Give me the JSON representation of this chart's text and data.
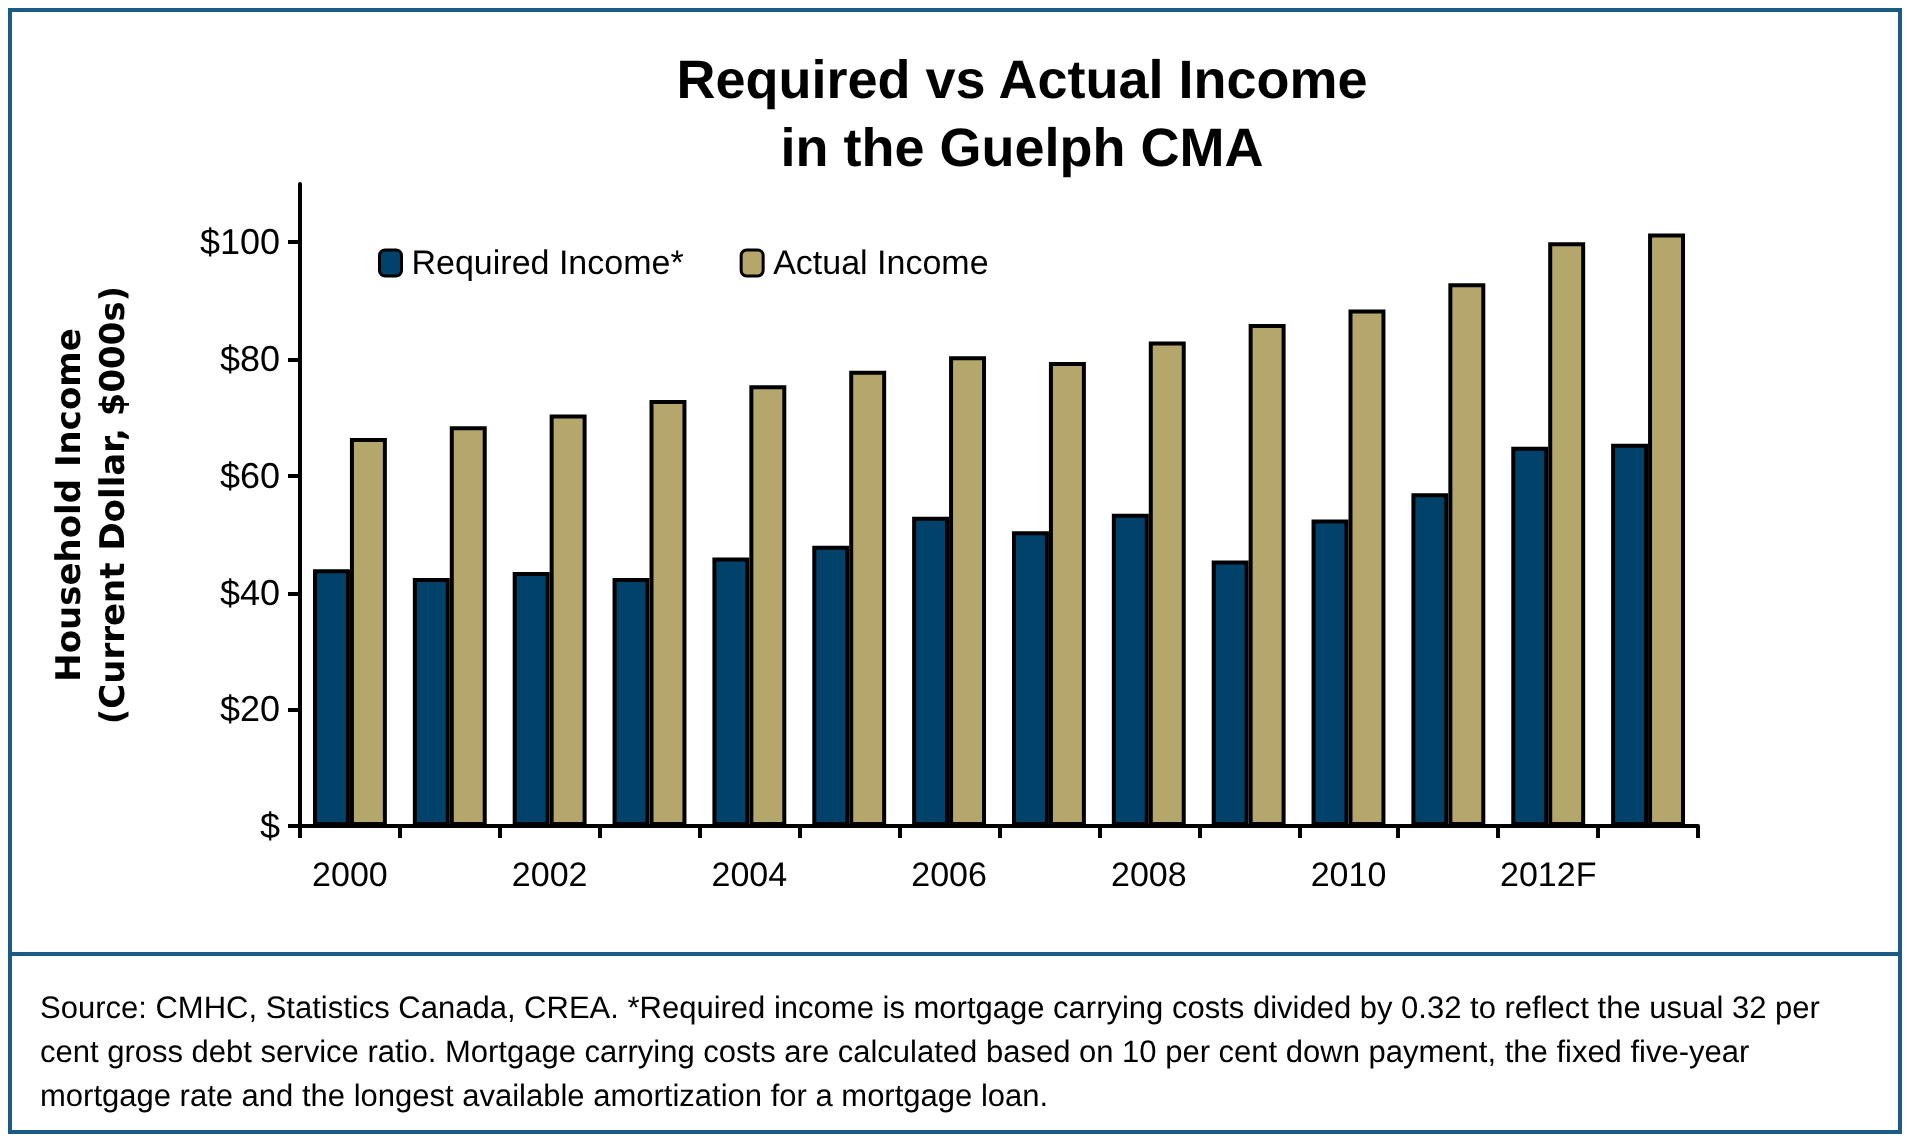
{
  "chart_data": {
    "type": "bar",
    "title": "Required vs Actual Income\nin the Guelph CMA",
    "ylabel": "Household Income\n(Current Dollar, $000s)",
    "categories": [
      "2000",
      null,
      "2002",
      null,
      "2004",
      null,
      "2006",
      null,
      "2008",
      null,
      "2010",
      null,
      "2012F",
      null
    ],
    "series": [
      {
        "name": "Required Income*",
        "color": "#01426a",
        "values": [
          44,
          42.5,
          43.5,
          42.5,
          46,
          48,
          53,
          50.5,
          53.5,
          45.5,
          52.5,
          57,
          65,
          65.5
        ]
      },
      {
        "name": "Actual Income",
        "color": "#b5a76c",
        "values": [
          66.5,
          68.5,
          70.5,
          73,
          75.5,
          78,
          80.5,
          79.5,
          83,
          86,
          88.5,
          93,
          100,
          101.5
        ]
      }
    ],
    "ylim": [
      0,
      110
    ],
    "yticks": [
      {
        "value": 0,
        "label": "$"
      },
      {
        "value": 20,
        "label": "$20"
      },
      {
        "value": 40,
        "label": "$40"
      },
      {
        "value": 60,
        "label": "$60"
      },
      {
        "value": 80,
        "label": "$80"
      },
      {
        "value": 100,
        "label": "$100"
      }
    ],
    "grid": false,
    "legend": "top left",
    "annotations": [
      "Source: CMHC, Statistics Canada, CREA. *Required income is mortgage carrying costs  divided by 0.32 to reflect the usual 32 per cent gross debt service ratio. Mortgage carrying costs are calculated based on 10 per cent down payment, the fixed five-year mortgage rate and the longest available amortization for a mortgage loan."
    ]
  }
}
